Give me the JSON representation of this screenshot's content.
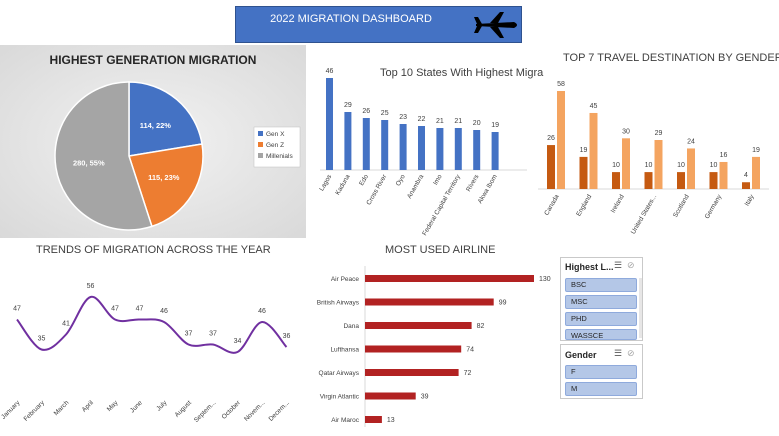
{
  "banner": {
    "title": "2022 MIGRATION DASHBOARD",
    "icon": "airplane-icon"
  },
  "pie": {
    "title": "HIGHEST GENERATION MIGRATION",
    "chart_data": {
      "type": "pie",
      "slices": [
        {
          "name": "Gen X",
          "value": 114,
          "label": "114, 22%",
          "color": "#4472c4"
        },
        {
          "name": "Gen Z",
          "value": 115,
          "label": "115, 23%",
          "color": "#ed7d31"
        },
        {
          "name": "Millenials",
          "value": 280,
          "label": "280, 55%",
          "color": "#a5a5a5"
        }
      ],
      "legend": "right"
    }
  },
  "states": {
    "title": "Top 10 States  With Highest Migra",
    "chart_data": {
      "type": "bar",
      "categories": [
        "Lagos",
        "Kaduna",
        "Edo",
        "Cross River",
        "Oyo",
        "Anambra",
        "Imo",
        "Federal Capital Territory",
        "Rivers",
        "Akwa Ibom"
      ],
      "values": [
        46,
        29,
        26,
        25,
        23,
        22,
        21,
        21,
        20,
        19
      ],
      "color": "#4472c4"
    }
  },
  "destinations": {
    "title": "TOP 7 TRAVEL DESTINATION BY GENDER",
    "chart_data": {
      "type": "bar",
      "categories": [
        "Canada",
        "England",
        "Ireland",
        "United States...",
        "Scotland",
        "Germany",
        "Italy"
      ],
      "series": [
        {
          "name": "F",
          "values": [
            26,
            19,
            10,
            10,
            10,
            10,
            4
          ],
          "color": "#c55a11"
        },
        {
          "name": "M",
          "values": [
            58,
            45,
            30,
            29,
            24,
            16,
            19
          ],
          "color": "#f4a460"
        }
      ]
    }
  },
  "trend": {
    "title": "TRENDS OF MIGRATION ACROSS THE YEAR",
    "chart_data": {
      "type": "line",
      "categories": [
        "January",
        "February",
        "March",
        "April",
        "May",
        "June",
        "July",
        "August",
        "Septem...",
        "October",
        "Novem...",
        "Decem..."
      ],
      "values": [
        47,
        35,
        41,
        56,
        47,
        47,
        46,
        37,
        37,
        34,
        46,
        36
      ],
      "color": "#7030a0"
    }
  },
  "airline": {
    "title": "MOST USED AIRLINE",
    "chart_data": {
      "type": "bar",
      "orientation": "horizontal",
      "categories": [
        "Air Peace",
        "British Airways",
        "Dana",
        "Lufthansa",
        "Qatar Airways",
        "Virgin Atlantic",
        "Air Maroc"
      ],
      "values": [
        130,
        99,
        82,
        74,
        72,
        39,
        13
      ],
      "color": "#b22222"
    }
  },
  "slicer_level": {
    "header": "Highest L...",
    "items": [
      "BSC",
      "MSC",
      "PHD",
      "WASSCE"
    ]
  },
  "slicer_gender": {
    "header": "Gender",
    "items": [
      "F",
      "M"
    ]
  }
}
